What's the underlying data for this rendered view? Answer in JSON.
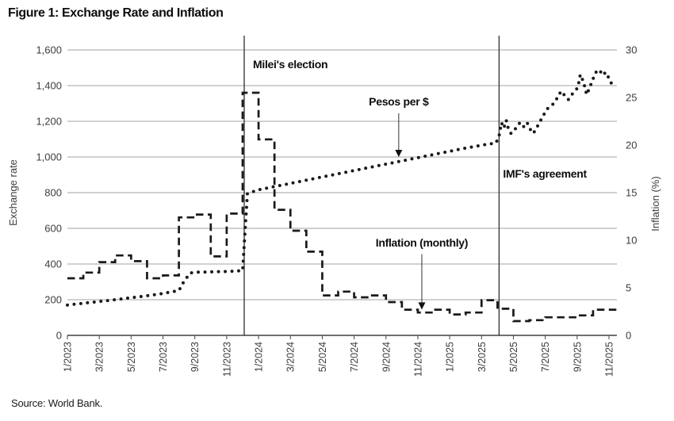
{
  "page": {
    "title": "Figure 1: Exchange Rate and Inflation",
    "source": "Source: World Bank."
  },
  "chart_data": {
    "type": "line",
    "title": "Figure 1: Exchange Rate and Inflation",
    "source": "Source: World Bank.",
    "grid": "horizontal",
    "x_axis": {
      "unit": "month",
      "tick_labels": [
        "1/2023",
        "3/2023",
        "5/2023",
        "7/2023",
        "9/2023",
        "11/2023",
        "1/2024",
        "3/2024",
        "5/2024",
        "7/2024",
        "9/2024",
        "11/2024",
        "1/2025",
        "3/2025",
        "5/2025",
        "7/2025",
        "9/2025",
        "11/2025"
      ],
      "months_per_tick": 2,
      "total_months": 34
    },
    "y_left": {
      "label": "Exchange rate",
      "min": 0,
      "max": 1600,
      "tick_step": 200,
      "tick_labels": [
        "0",
        "200",
        "400",
        "600",
        "800",
        "1,000",
        "1,200",
        "1,400",
        "1,600"
      ]
    },
    "y_right": {
      "label": "Inflation (%)",
      "min": 0,
      "max": 30,
      "tick_step": 5,
      "tick_labels": [
        "0",
        "5",
        "10",
        "15",
        "20",
        "25",
        "30"
      ]
    },
    "series": [
      {
        "name": "Pesos per $",
        "axis": "left",
        "line_style": "dotted",
        "step": false,
        "color": "#1a1a1a",
        "points": [
          [
            0,
            170
          ],
          [
            1,
            180
          ],
          [
            2,
            190
          ],
          [
            3,
            200
          ],
          [
            4,
            211
          ],
          [
            5,
            222
          ],
          [
            6,
            235
          ],
          [
            7,
            251
          ],
          [
            7.3,
            300
          ],
          [
            7.7,
            349
          ],
          [
            8,
            354
          ],
          [
            9,
            356
          ],
          [
            10,
            358
          ],
          [
            11,
            363
          ],
          [
            11.3,
            795
          ],
          [
            12,
            816
          ],
          [
            13,
            834
          ],
          [
            14,
            852
          ],
          [
            15,
            870
          ],
          [
            16,
            888
          ],
          [
            17,
            906
          ],
          [
            18,
            924
          ],
          [
            19,
            942
          ],
          [
            20,
            960
          ],
          [
            21,
            978
          ],
          [
            22,
            996
          ],
          [
            23,
            1014
          ],
          [
            24,
            1032
          ],
          [
            25,
            1050
          ],
          [
            26,
            1066
          ],
          [
            26.9,
            1078
          ],
          [
            27.1,
            1118
          ],
          [
            27.25,
            1192
          ],
          [
            27.4,
            1162
          ],
          [
            27.55,
            1206
          ],
          [
            27.7,
            1152
          ],
          [
            27.85,
            1132
          ],
          [
            28.05,
            1146
          ],
          [
            28.25,
            1178
          ],
          [
            28.45,
            1194
          ],
          [
            28.65,
            1170
          ],
          [
            28.85,
            1194
          ],
          [
            29.05,
            1156
          ],
          [
            29.25,
            1132
          ],
          [
            29.45,
            1162
          ],
          [
            29.65,
            1196
          ],
          [
            29.85,
            1226
          ],
          [
            30.05,
            1262
          ],
          [
            30.25,
            1281
          ],
          [
            30.45,
            1293
          ],
          [
            30.65,
            1313
          ],
          [
            30.85,
            1352
          ],
          [
            31.05,
            1369
          ],
          [
            31.25,
            1338
          ],
          [
            31.45,
            1322
          ],
          [
            31.65,
            1349
          ],
          [
            31.85,
            1366
          ],
          [
            32.05,
            1391
          ],
          [
            32.2,
            1462
          ],
          [
            32.4,
            1421
          ],
          [
            32.6,
            1349
          ],
          [
            32.8,
            1391
          ],
          [
            33,
            1438
          ],
          [
            33.2,
            1478
          ],
          [
            33.4,
            1489
          ],
          [
            33.6,
            1458
          ],
          [
            33.8,
            1475
          ],
          [
            34,
            1441
          ],
          [
            34.15,
            1413
          ],
          [
            34.3,
            1427
          ]
        ]
      },
      {
        "name": "Inflation (monthly)",
        "axis": "right",
        "line_style": "dashed",
        "step": true,
        "color": "#1a1a1a",
        "points": [
          [
            0,
            6
          ],
          [
            1,
            6.6
          ],
          [
            2,
            7.7
          ],
          [
            3,
            8.4
          ],
          [
            4,
            7.8
          ],
          [
            5,
            6
          ],
          [
            6,
            6.3
          ],
          [
            7,
            12.4
          ],
          [
            8,
            12.7
          ],
          [
            9,
            8.3
          ],
          [
            10,
            12.8
          ],
          [
            11,
            25.5
          ],
          [
            12,
            20.6
          ],
          [
            13,
            13.2
          ],
          [
            14,
            11
          ],
          [
            15,
            8.8
          ],
          [
            16,
            4.2
          ],
          [
            17,
            4.6
          ],
          [
            18,
            4
          ],
          [
            19,
            4.2
          ],
          [
            20,
            3.5
          ],
          [
            21,
            2.7
          ],
          [
            22,
            2.4
          ],
          [
            23,
            2.7
          ],
          [
            24,
            2.2
          ],
          [
            25,
            2.4
          ],
          [
            26,
            3.7
          ],
          [
            27,
            2.8
          ],
          [
            28,
            1.5
          ],
          [
            29,
            1.6
          ],
          [
            30,
            1.9
          ],
          [
            31,
            1.9
          ],
          [
            32,
            2.1
          ],
          [
            33,
            2.7
          ],
          [
            34,
            2.7
          ]
        ]
      }
    ],
    "annotations": {
      "vlines": [
        {
          "label": "Milei's election",
          "month": 11.1,
          "label_month": 11.65,
          "label_value_left": 1545
        },
        {
          "label": "IMF's agreement",
          "month": 27.1,
          "label_month": 27.35,
          "label_value_left": 930
        }
      ],
      "callouts": [
        {
          "label": "Pesos per $",
          "month": 20.8,
          "text_value_left": 1335,
          "arrow_from_left": 1245,
          "arrow_to_left": 1040
        },
        {
          "label": "Inflation (monthly)",
          "month": 22.25,
          "text_value_left": 545,
          "arrow_from_left": 455,
          "arrow_to_left": 185
        }
      ]
    }
  }
}
